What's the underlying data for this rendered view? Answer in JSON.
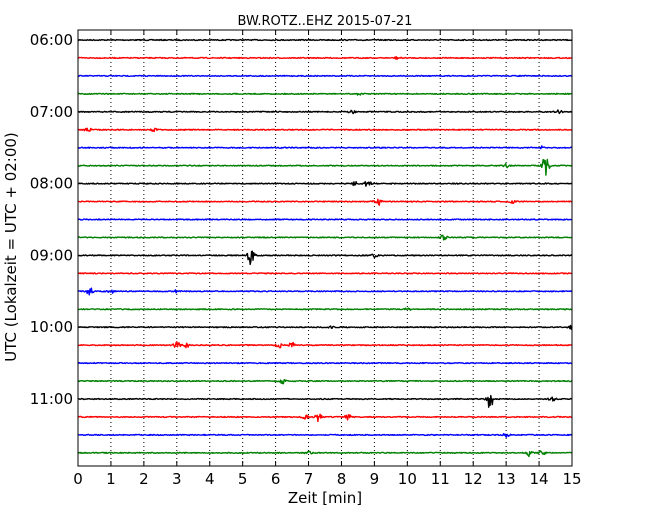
{
  "chart_data": {
    "type": "line",
    "title": "BW.ROTZ..EHZ 2015-07-21",
    "xlabel": "Zeit  [min]",
    "ylabel": "UTC (Lokalzeit = UTC + 02:00)",
    "xlim": [
      0,
      15
    ],
    "x_ticks": [
      "0",
      "1",
      "2",
      "3",
      "4",
      "5",
      "6",
      "7",
      "8",
      "9",
      "10",
      "11",
      "12",
      "13",
      "14",
      "15"
    ],
    "y_ticks": [
      "06:00",
      "07:00",
      "08:00",
      "09:00",
      "10:00",
      "11:00"
    ],
    "grid": true,
    "trace_colors": [
      "#000000",
      "#ff0000",
      "#0000ff",
      "#008000"
    ],
    "traces": [
      {
        "time": "06:00",
        "color": "#000000",
        "events": []
      },
      {
        "time": "06:15",
        "color": "#ff0000",
        "events": [
          {
            "minute": 9.7,
            "amplitude": 0.15
          }
        ]
      },
      {
        "time": "06:30",
        "color": "#0000ff",
        "events": []
      },
      {
        "time": "06:45",
        "color": "#008000",
        "events": [
          {
            "minute": 8.5,
            "amplitude": 0.15
          }
        ]
      },
      {
        "time": "07:00",
        "color": "#000000",
        "events": [
          {
            "minute": 8.3,
            "amplitude": 0.25
          },
          {
            "minute": 14.6,
            "amplitude": 0.2
          }
        ]
      },
      {
        "time": "07:15",
        "color": "#ff0000",
        "events": [
          {
            "minute": 0.3,
            "amplitude": 0.25
          },
          {
            "minute": 2.3,
            "amplitude": 0.2
          }
        ]
      },
      {
        "time": "07:30",
        "color": "#0000ff",
        "events": [
          {
            "minute": 14.1,
            "amplitude": 0.15
          }
        ]
      },
      {
        "time": "07:45",
        "color": "#008000",
        "events": [
          {
            "minute": 13.0,
            "amplitude": 0.2
          },
          {
            "minute": 14.2,
            "amplitude": 1.3
          }
        ]
      },
      {
        "time": "08:00",
        "color": "#000000",
        "events": [
          {
            "minute": 8.4,
            "amplitude": 0.3
          },
          {
            "minute": 8.8,
            "amplitude": 0.35
          }
        ]
      },
      {
        "time": "08:15",
        "color": "#ff0000",
        "events": [
          {
            "minute": 9.1,
            "amplitude": 0.6
          },
          {
            "minute": 13.2,
            "amplitude": 0.2
          }
        ]
      },
      {
        "time": "08:30",
        "color": "#0000ff",
        "events": []
      },
      {
        "time": "08:45",
        "color": "#008000",
        "events": [
          {
            "minute": 11.1,
            "amplitude": 0.3
          }
        ]
      },
      {
        "time": "09:00",
        "color": "#000000",
        "events": [
          {
            "minute": 5.25,
            "amplitude": 1.2
          },
          {
            "minute": 9.0,
            "amplitude": 0.3
          }
        ]
      },
      {
        "time": "09:15",
        "color": "#ff0000",
        "events": []
      },
      {
        "time": "09:30",
        "color": "#0000ff",
        "events": [
          {
            "minute": 0.35,
            "amplitude": 0.45
          },
          {
            "minute": 1.0,
            "amplitude": 0.25
          },
          {
            "minute": 3.0,
            "amplitude": 0.15
          }
        ]
      },
      {
        "time": "09:45",
        "color": "#008000",
        "events": [
          {
            "minute": 10.0,
            "amplitude": 0.15
          }
        ]
      },
      {
        "time": "10:00",
        "color": "#000000",
        "events": [
          {
            "minute": 7.7,
            "amplitude": 0.15
          },
          {
            "minute": 15.0,
            "amplitude": 0.2
          }
        ]
      },
      {
        "time": "10:15",
        "color": "#ff0000",
        "events": [
          {
            "minute": 3.0,
            "amplitude": 0.4
          },
          {
            "minute": 3.3,
            "amplitude": 0.35
          },
          {
            "minute": 6.1,
            "amplitude": 0.35
          },
          {
            "minute": 6.5,
            "amplitude": 0.3
          }
        ]
      },
      {
        "time": "10:30",
        "color": "#0000ff",
        "events": []
      },
      {
        "time": "10:45",
        "color": "#008000",
        "events": [
          {
            "minute": 6.2,
            "amplitude": 0.3
          }
        ]
      },
      {
        "time": "11:00",
        "color": "#000000",
        "events": [
          {
            "minute": 12.5,
            "amplitude": 1.4
          },
          {
            "minute": 14.4,
            "amplitude": 0.25
          }
        ]
      },
      {
        "time": "11:15",
        "color": "#ff0000",
        "events": [
          {
            "minute": 6.9,
            "amplitude": 0.2
          },
          {
            "minute": 7.3,
            "amplitude": 0.5
          },
          {
            "minute": 8.2,
            "amplitude": 0.35
          }
        ]
      },
      {
        "time": "11:30",
        "color": "#0000ff",
        "events": [
          {
            "minute": 13.0,
            "amplitude": 0.2
          }
        ]
      },
      {
        "time": "11:45",
        "color": "#008000",
        "events": [
          {
            "minute": 7.0,
            "amplitude": 0.2
          },
          {
            "minute": 13.7,
            "amplitude": 0.35
          },
          {
            "minute": 14.1,
            "amplitude": 0.3
          }
        ]
      }
    ]
  }
}
